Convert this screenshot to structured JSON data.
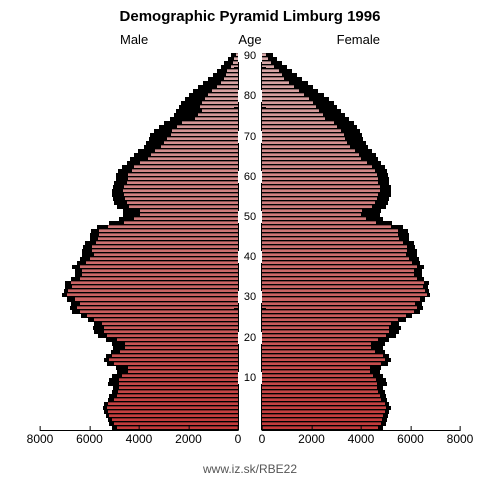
{
  "title": "Demographic Pyramid Limburg 1996",
  "title_fontsize": 15,
  "labels": {
    "male": "Male",
    "age": "Age",
    "female": "Female"
  },
  "source": "www.iz.sk/RBE22",
  "background_color": "#ffffff",
  "shadow_color": "#000000",
  "axis_color": "#000000",
  "gradient_top": "#d8aaaa",
  "gradient_bottom": "#c23a3a",
  "type": "population-pyramid",
  "x_axis": {
    "max": 8000,
    "ticks_left": [
      8000,
      6000,
      4000,
      2000,
      0
    ],
    "ticks_right": [
      0,
      2000,
      4000,
      6000,
      8000
    ],
    "tick_fontsize": 12
  },
  "y_axis": {
    "ticks": [
      10,
      20,
      30,
      40,
      50,
      60,
      70,
      80,
      90
    ],
    "max_age": 94,
    "tick_fontsize": 11
  },
  "male": {
    "current": [
      4900,
      5000,
      5100,
      5200,
      5250,
      5300,
      5250,
      5000,
      4900,
      4850,
      4800,
      4800,
      4800,
      4700,
      4450,
      4450,
      5000,
      5200,
      5100,
      4750,
      4550,
      4550,
      4900,
      5300,
      5400,
      5400,
      5500,
      5800,
      6100,
      6400,
      6500,
      6400,
      6600,
      6900,
      6850,
      6700,
      6750,
      6400,
      6300,
      6300,
      6400,
      6150,
      6000,
      5800,
      5900,
      5900,
      5750,
      5650,
      5600,
      5600,
      5250,
      4600,
      4200,
      3950,
      3950,
      4400,
      4500,
      4550,
      4600,
      4650,
      4600,
      4500,
      4450,
      4450,
      4300,
      4200,
      3950,
      3650,
      3500,
      3350,
      3100,
      3000,
      2850,
      2700,
      2650,
      2450,
      2250,
      1750,
      1600,
      1450,
      1550,
      1450,
      1350,
      1200,
      1050,
      850,
      700,
      550,
      500,
      450,
      300,
      200,
      150,
      90
    ],
    "comparison": [
      5100,
      5200,
      5250,
      5350,
      5400,
      5450,
      5400,
      5250,
      5200,
      5100,
      5050,
      5250,
      5200,
      5100,
      4900,
      4950,
      5300,
      5400,
      5350,
      5150,
      5050,
      5100,
      5350,
      5650,
      5800,
      5850,
      5800,
      6050,
      6350,
      6700,
      6800,
      6750,
      6900,
      7100,
      7050,
      7000,
      7000,
      6750,
      6600,
      6600,
      6700,
      6500,
      6400,
      6300,
      6300,
      6250,
      6200,
      6000,
      6000,
      5950,
      5700,
      5200,
      4800,
      4650,
      4650,
      4900,
      5000,
      5050,
      5100,
      5100,
      5050,
      5000,
      4950,
      4950,
      4850,
      4700,
      4500,
      4350,
      4200,
      4050,
      3800,
      3700,
      3600,
      3550,
      3400,
      3200,
      3000,
      2750,
      2600,
      2500,
      2400,
      2300,
      2150,
      2000,
      1800,
      1600,
      1400,
      1200,
      1000,
      850,
      700,
      550,
      400,
      300
    ]
  },
  "female": {
    "current": [
      4700,
      4800,
      4850,
      4900,
      4950,
      5000,
      4950,
      4800,
      4750,
      4700,
      4650,
      4650,
      4600,
      4500,
      4350,
      4350,
      4800,
      4950,
      4900,
      4550,
      4400,
      4400,
      4700,
      5000,
      5150,
      5150,
      5200,
      5500,
      5800,
      6150,
      6250,
      6200,
      6400,
      6650,
      6600,
      6500,
      6550,
      6250,
      6150,
      6150,
      6250,
      6050,
      5950,
      5800,
      5850,
      5850,
      5700,
      5550,
      5500,
      5500,
      5200,
      4600,
      4200,
      4000,
      4050,
      4450,
      4550,
      4650,
      4700,
      4750,
      4750,
      4700,
      4700,
      4650,
      4550,
      4450,
      4250,
      4000,
      3900,
      3750,
      3550,
      3450,
      3350,
      3300,
      3200,
      3050,
      2900,
      2550,
      2450,
      2300,
      2200,
      2050,
      1900,
      1700,
      1500,
      1300,
      1100,
      900,
      800,
      700,
      500,
      350,
      250,
      150
    ],
    "comparison": [
      4900,
      5000,
      5050,
      5100,
      5150,
      5200,
      5150,
      5050,
      5000,
      4950,
      4900,
      5050,
      5000,
      4900,
      4750,
      4800,
      5100,
      5200,
      5150,
      4950,
      4900,
      4950,
      5150,
      5400,
      5550,
      5600,
      5550,
      5800,
      6050,
      6400,
      6500,
      6450,
      6600,
      6800,
      6750,
      6700,
      6750,
      6550,
      6450,
      6450,
      6550,
      6400,
      6350,
      6250,
      6250,
      6200,
      6150,
      5950,
      5950,
      5900,
      5700,
      5250,
      4900,
      4750,
      4800,
      5000,
      5100,
      5150,
      5200,
      5200,
      5200,
      5150,
      5150,
      5100,
      5050,
      4950,
      4800,
      4700,
      4600,
      4450,
      4300,
      4200,
      4100,
      4050,
      3950,
      3850,
      3700,
      3500,
      3350,
      3200,
      3050,
      2900,
      2700,
      2500,
      2250,
      2050,
      1850,
      1600,
      1400,
      1200,
      1000,
      800,
      600,
      450
    ]
  }
}
